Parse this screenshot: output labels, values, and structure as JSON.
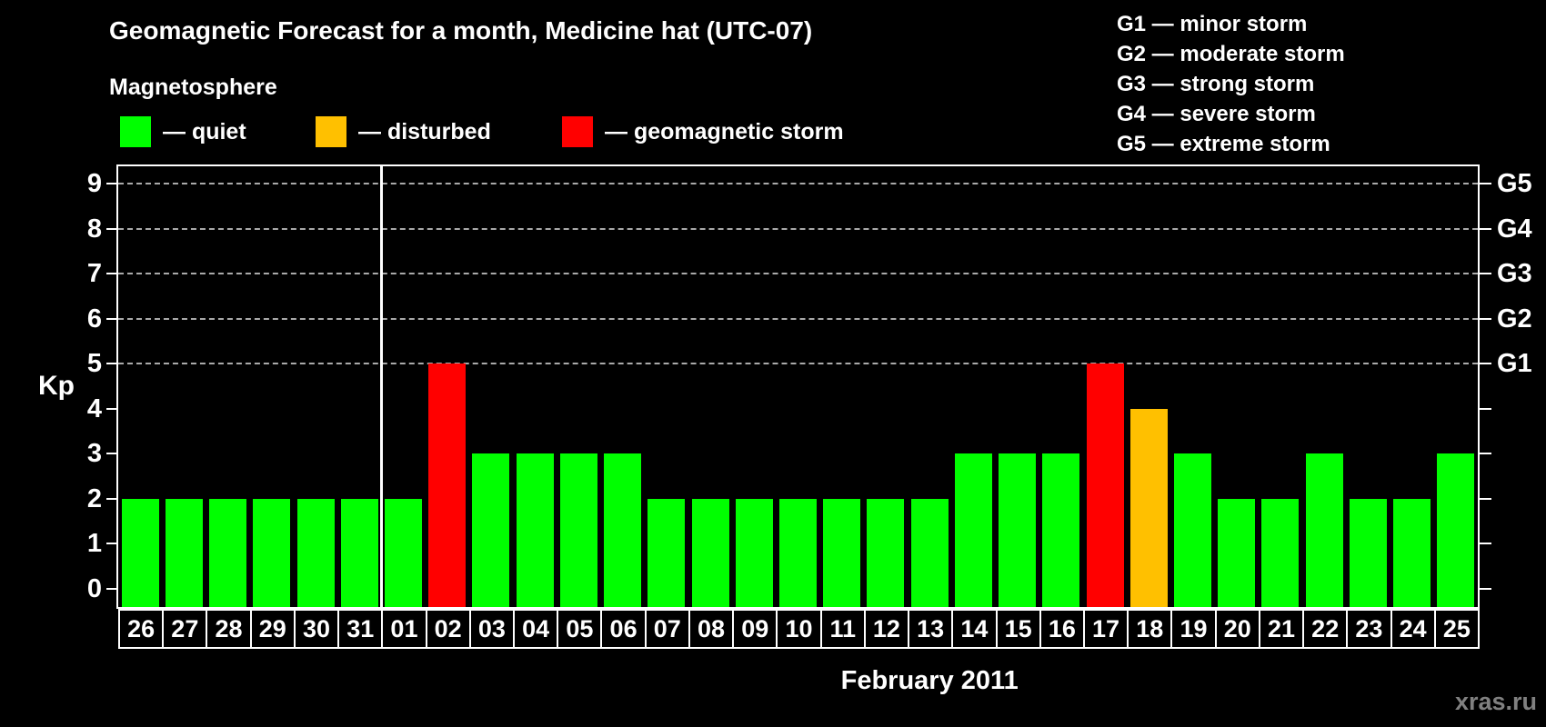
{
  "colors": {
    "quiet": "#00ff00",
    "disturbed": "#ffc000",
    "storm": "#ff0000",
    "background": "#000000",
    "text": "#ffffff",
    "grid": "#aaaaaa",
    "watermark": "#808080"
  },
  "chart_data": {
    "type": "bar",
    "title": "Geomagnetic Forecast for a month, Medicine hat (UTC-07)",
    "legend_title": "Magnetosphere",
    "legend": [
      {
        "label": "— quiet",
        "status": "quiet"
      },
      {
        "label": "— disturbed",
        "status": "disturbed"
      },
      {
        "label": "— geomagnetic storm",
        "status": "storm"
      }
    ],
    "g_scale_legend": [
      "G1 — minor storm",
      "G2 — moderate storm",
      "G3 — strong storm",
      "G4 — severe storm",
      "G5 — extreme storm"
    ],
    "ylabel": "Kp",
    "xlabel": "February 2011",
    "ylim": [
      0,
      9
    ],
    "yticks": [
      0,
      1,
      2,
      3,
      4,
      5,
      6,
      7,
      8,
      9
    ],
    "grid_levels": [
      5,
      6,
      7,
      8,
      9
    ],
    "right_axis": [
      {
        "kp": 5,
        "label": "G1"
      },
      {
        "kp": 6,
        "label": "G2"
      },
      {
        "kp": 7,
        "label": "G3"
      },
      {
        "kp": 8,
        "label": "G4"
      },
      {
        "kp": 9,
        "label": "G5"
      }
    ],
    "categories": [
      "26",
      "27",
      "28",
      "29",
      "30",
      "31",
      "01",
      "02",
      "03",
      "04",
      "05",
      "06",
      "07",
      "08",
      "09",
      "10",
      "11",
      "12",
      "13",
      "14",
      "15",
      "16",
      "17",
      "18",
      "19",
      "20",
      "21",
      "22",
      "23",
      "24",
      "25"
    ],
    "values": [
      2,
      2,
      2,
      2,
      2,
      2,
      2,
      5,
      3,
      3,
      3,
      3,
      2,
      2,
      2,
      2,
      2,
      2,
      2,
      3,
      3,
      3,
      5,
      4,
      3,
      2,
      2,
      3,
      2,
      2,
      3
    ],
    "statuses": [
      "quiet",
      "quiet",
      "quiet",
      "quiet",
      "quiet",
      "quiet",
      "quiet",
      "storm",
      "quiet",
      "quiet",
      "quiet",
      "quiet",
      "quiet",
      "quiet",
      "quiet",
      "quiet",
      "quiet",
      "quiet",
      "quiet",
      "quiet",
      "quiet",
      "quiet",
      "storm",
      "disturbed",
      "quiet",
      "quiet",
      "quiet",
      "quiet",
      "quiet",
      "quiet",
      "quiet"
    ],
    "separator_after_index": 5
  },
  "footer": {
    "watermark": "xras.ru"
  }
}
